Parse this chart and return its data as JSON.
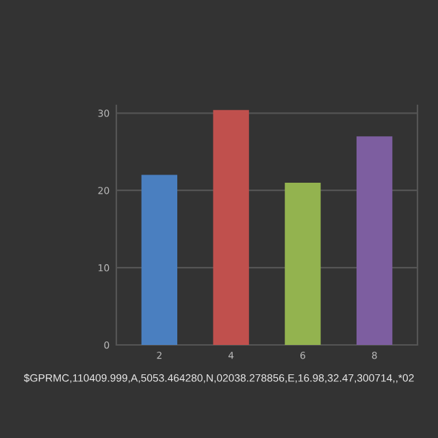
{
  "chart_data": {
    "type": "bar",
    "categories": [
      "2",
      "4",
      "6",
      "8"
    ],
    "values": [
      22,
      30.4,
      21,
      27
    ],
    "colors": [
      "#4a7fc0",
      "#c0504d",
      "#93b34f",
      "#7d5ea0"
    ],
    "ylim": [
      0,
      31
    ],
    "yticks": [
      0,
      10,
      20,
      30
    ],
    "grid": "y",
    "annotations": [
      "$GPRMC,110409.999,A,5053.464280,N,02038.278856,E,16.98,32.47,300714,,*02"
    ]
  }
}
